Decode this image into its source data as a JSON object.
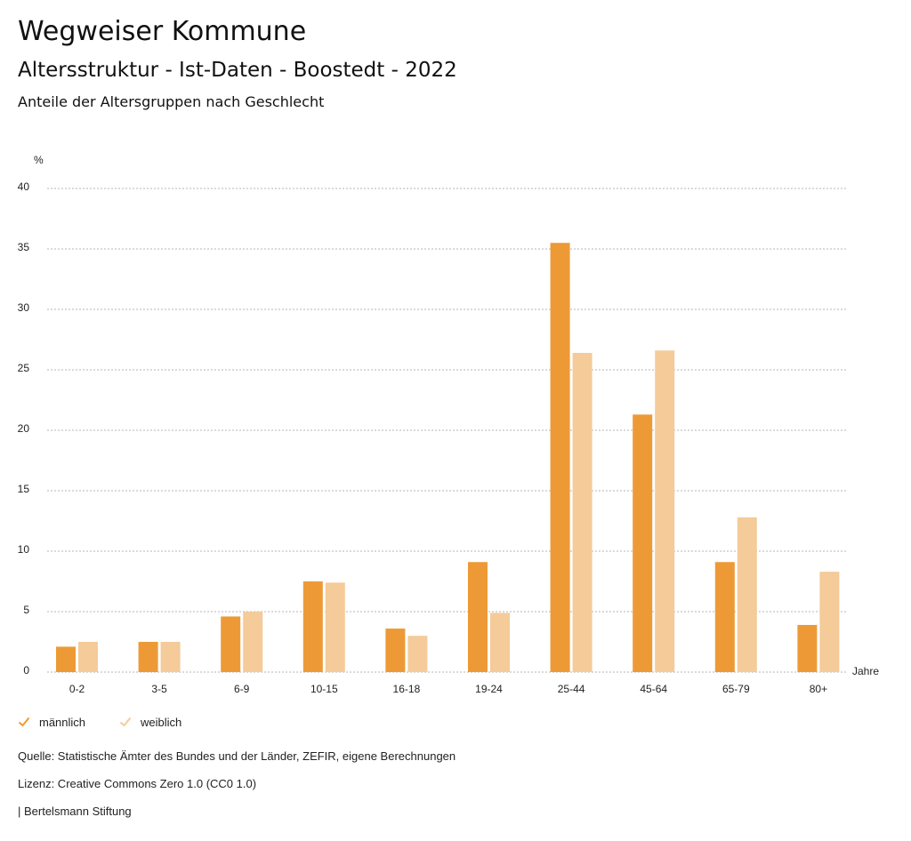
{
  "header": {
    "title": "Wegweiser Kommune",
    "subtitle": "Altersstruktur - Ist-Daten - Boostedt - 2022",
    "caption": "Anteile der Altersgruppen nach Geschlecht"
  },
  "colors": {
    "maennlich": "#ED9A36",
    "weiblich": "#F4CB99",
    "grid": "#b5b5b5"
  },
  "chart_data": {
    "type": "bar",
    "title": "Anteile der Altersgruppen nach Geschlecht",
    "xlabel": "Jahre",
    "ylabel": "%",
    "ylim": [
      0,
      40
    ],
    "yticks": [
      0,
      5,
      10,
      15,
      20,
      25,
      30,
      35,
      40
    ],
    "grid": true,
    "legend_position": "bottom-left",
    "categories": [
      "0-2",
      "3-5",
      "6-9",
      "10-15",
      "16-18",
      "19-24",
      "25-44",
      "45-64",
      "65-79",
      "80+"
    ],
    "series": [
      {
        "name": "männlich",
        "values": [
          2.1,
          2.5,
          4.6,
          7.5,
          3.6,
          9.1,
          35.5,
          21.3,
          9.1,
          3.9
        ]
      },
      {
        "name": "weiblich",
        "values": [
          2.5,
          2.5,
          5.0,
          7.4,
          3.0,
          4.9,
          26.4,
          26.6,
          12.8,
          8.3
        ]
      }
    ]
  },
  "legend": {
    "items": [
      {
        "label": "männlich",
        "icon": "check-icon"
      },
      {
        "label": "weiblich",
        "icon": "check-icon"
      }
    ]
  },
  "footer": {
    "source": "Quelle: Statistische Ämter des Bundes und der Länder, ZEFIR, eigene Berechnungen",
    "license": "Lizenz: Creative Commons Zero 1.0 (CC0 1.0)",
    "publisher": "| Bertelsmann Stiftung"
  }
}
